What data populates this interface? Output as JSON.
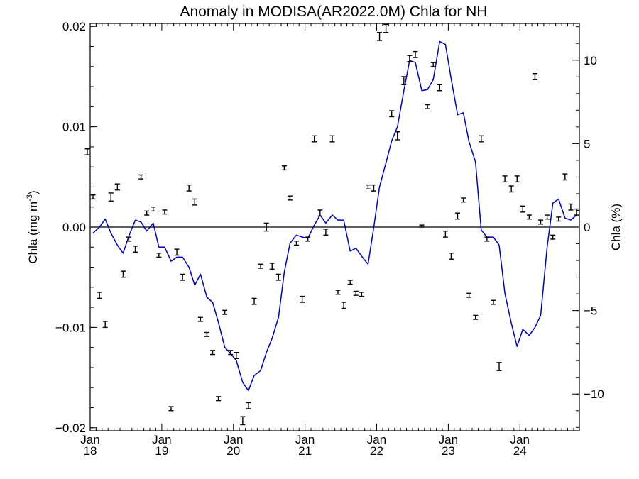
{
  "chart_data": {
    "type": "line",
    "title": "Anomaly in MODISA(AR2022.0M) Chla for NH",
    "ylabel_left": {
      "main": "Chla (mg m",
      "sup": "-3",
      "close": ")"
    },
    "ylabel_right": "Chla (%)",
    "xlim": [
      2018.0,
      2024.83
    ],
    "ylim": [
      -0.0203,
      0.0203
    ],
    "ylim_right": [
      -12.2,
      12.2
    ],
    "x_ticks": [
      {
        "x": 2018,
        "month": "Jan",
        "year": "18"
      },
      {
        "x": 2019,
        "month": "Jan",
        "year": "19"
      },
      {
        "x": 2020,
        "month": "Jan",
        "year": "20"
      },
      {
        "x": 2021,
        "month": "Jan",
        "year": "21"
      },
      {
        "x": 2022,
        "month": "Jan",
        "year": "22"
      },
      {
        "x": 2023,
        "month": "Jan",
        "year": "23"
      },
      {
        "x": 2024,
        "month": "Jan",
        "year": "24"
      }
    ],
    "y_ticks_left": [
      {
        "v": -0.02,
        "label": "−0.02"
      },
      {
        "v": -0.01,
        "label": "−0.01"
      },
      {
        "v": 0.0,
        "label": "0.00"
      },
      {
        "v": 0.01,
        "label": "0.01"
      },
      {
        "v": 0.02,
        "label": "0.02"
      }
    ],
    "y_ticks_right": [
      {
        "v": -10,
        "label": "−10"
      },
      {
        "v": -5,
        "label": "−5"
      },
      {
        "v": 0,
        "label": "0"
      },
      {
        "v": 5,
        "label": "5"
      },
      {
        "v": 10,
        "label": "10"
      }
    ],
    "zero_line": 0,
    "series": [
      {
        "kind": "line",
        "axis": "left",
        "color": "#0000cc",
        "x": [
          2018.04,
          2018.13,
          2018.21,
          2018.29,
          2018.38,
          2018.46,
          2018.54,
          2018.63,
          2018.71,
          2018.79,
          2018.88,
          2018.96,
          2019.04,
          2019.13,
          2019.21,
          2019.29,
          2019.38,
          2019.46,
          2019.54,
          2019.63,
          2019.71,
          2019.79,
          2019.88,
          2019.96,
          2020.04,
          2020.13,
          2020.21,
          2020.29,
          2020.38,
          2020.46,
          2020.54,
          2020.63,
          2020.71,
          2020.79,
          2020.88,
          2020.96,
          2021.04,
          2021.13,
          2021.21,
          2021.29,
          2021.38,
          2021.46,
          2021.54,
          2021.63,
          2021.71,
          2021.79,
          2021.88,
          2021.96,
          2022.04,
          2022.13,
          2022.21,
          2022.29,
          2022.38,
          2022.46,
          2022.54,
          2022.63,
          2022.71,
          2022.79,
          2022.88,
          2022.96,
          2023.04,
          2023.13,
          2023.21,
          2023.29,
          2023.38,
          2023.46,
          2023.54,
          2023.63,
          2023.71,
          2023.79,
          2023.88,
          2023.96,
          2024.04,
          2024.13,
          2024.21,
          2024.29,
          2024.38,
          2024.46,
          2024.54,
          2024.63,
          2024.71,
          2024.79
        ],
        "y": [
          -0.0006,
          0.0,
          0.0008,
          -0.0006,
          -0.0018,
          -0.0026,
          -0.0009,
          0.0007,
          0.0005,
          -0.0004,
          0.0004,
          -0.002,
          -0.002,
          -0.0034,
          -0.003,
          -0.003,
          -0.004,
          -0.0058,
          -0.0047,
          -0.007,
          -0.0075,
          -0.0095,
          -0.012,
          -0.0126,
          -0.0133,
          -0.0155,
          -0.0163,
          -0.0148,
          -0.0143,
          -0.0125,
          -0.0111,
          -0.009,
          -0.0045,
          -0.0016,
          -0.0008,
          -0.001,
          -0.0011,
          0.0002,
          0.0012,
          0.0004,
          0.0012,
          0.0007,
          0.0007,
          -0.0024,
          -0.0021,
          -0.0029,
          -0.0037,
          0.0,
          0.004,
          0.0064,
          0.0086,
          0.01,
          0.0136,
          0.0166,
          0.0164,
          0.0136,
          0.0137,
          0.0147,
          0.0185,
          0.0182,
          0.0148,
          0.0112,
          0.0114,
          0.0085,
          0.0065,
          -0.0003,
          -0.001,
          -0.001,
          -0.0018,
          -0.0066,
          -0.0096,
          -0.0119,
          -0.0102,
          -0.0108,
          -0.01,
          -0.0088,
          -0.002,
          0.0024,
          0.0028,
          0.0009,
          0.0007,
          0.0012
        ]
      },
      {
        "kind": "errorbar",
        "axis": "left",
        "color": "#000000",
        "x": [
          2017.96,
          2018.04,
          2018.13,
          2018.21,
          2018.29,
          2018.38,
          2018.46,
          2018.54,
          2018.63,
          2018.71,
          2018.79,
          2018.88,
          2018.96,
          2019.04,
          2019.13,
          2019.21,
          2019.29,
          2019.38,
          2019.46,
          2019.54,
          2019.63,
          2019.71,
          2019.79,
          2019.88,
          2019.96,
          2020.04,
          2020.13,
          2020.21,
          2020.29,
          2020.38,
          2020.46,
          2020.54,
          2020.63,
          2020.71,
          2020.79,
          2020.88,
          2020.96,
          2021.04,
          2021.13,
          2021.21,
          2021.29,
          2021.38,
          2021.46,
          2021.54,
          2021.63,
          2021.71,
          2021.79,
          2021.88,
          2021.96,
          2022.04,
          2022.13,
          2022.21,
          2022.29,
          2022.38,
          2022.46,
          2022.54,
          2022.63,
          2022.71,
          2022.79,
          2022.88,
          2022.96,
          2023.04,
          2023.13,
          2023.21,
          2023.29,
          2023.38,
          2023.46,
          2023.54,
          2023.63,
          2023.71,
          2023.79,
          2023.88,
          2023.96,
          2024.04,
          2024.13,
          2024.21,
          2024.29,
          2024.38,
          2024.46,
          2024.54,
          2024.63,
          2024.71,
          2024.79
        ],
        "y": [
          0.0075,
          0.003,
          -0.0068,
          -0.0097,
          0.003,
          0.004,
          -0.0047,
          -0.0012,
          -0.0022,
          0.005,
          0.0014,
          0.0018,
          -0.0028,
          0.0015,
          -0.0181,
          -0.0025,
          -0.005,
          0.0039,
          0.0025,
          -0.0092,
          -0.0107,
          -0.0125,
          -0.0171,
          -0.0085,
          -0.0125,
          -0.0128,
          -0.0193,
          -0.0178,
          -0.0074,
          -0.0039,
          0.0,
          -0.0039,
          -0.005,
          0.0059,
          0.0029,
          -0.0016,
          -0.0072,
          -0.0012,
          0.0088,
          0.0014,
          -0.0005,
          0.0088,
          -0.0065,
          -0.0078,
          -0.0055,
          -0.0066,
          -0.0067,
          0.004,
          0.0039,
          0.019,
          0.0198,
          0.0113,
          0.0091,
          0.0146,
          0.0168,
          0.0172,
          0.0001,
          0.012,
          0.0162,
          0.0139,
          -0.0007,
          -0.0029,
          0.0011,
          0.0027,
          -0.0068,
          -0.009,
          0.0088,
          -0.0012,
          -0.0075,
          -0.0139,
          0.0048,
          0.0038,
          0.0048,
          0.0018,
          0.001,
          0.015,
          0.0005,
          0.001,
          -0.001,
          0.0008,
          0.005,
          0.002,
          0.0015
        ],
        "err": [
          0.0003,
          0.0002,
          0.0003,
          0.0003,
          0.0004,
          0.0003,
          0.0003,
          0.0002,
          0.0003,
          0.0002,
          0.0002,
          0.0002,
          0.0002,
          0.0002,
          0.0002,
          0.0003,
          0.0003,
          0.0003,
          0.0003,
          0.0002,
          0.0002,
          0.0002,
          0.0002,
          0.0002,
          0.0002,
          0.0003,
          0.0004,
          0.0003,
          0.0003,
          0.0002,
          0.0004,
          0.0003,
          0.0003,
          0.0002,
          0.0002,
          0.0002,
          0.0003,
          0.0002,
          0.0003,
          0.0003,
          0.0003,
          0.0003,
          0.0002,
          0.0003,
          0.0002,
          0.0002,
          0.0002,
          0.0002,
          0.0003,
          0.0004,
          0.0004,
          0.0003,
          0.0004,
          0.0004,
          0.0003,
          0.0003,
          0.0001,
          0.0002,
          0.0002,
          0.0003,
          0.0003,
          0.0003,
          0.0003,
          0.0002,
          0.0002,
          0.0002,
          0.0003,
          0.0002,
          0.0002,
          0.0004,
          0.0003,
          0.0003,
          0.0003,
          0.0003,
          0.0002,
          0.0003,
          0.0002,
          0.0002,
          0.0002,
          0.0002,
          0.0003,
          0.0003,
          0.0003
        ]
      }
    ]
  }
}
